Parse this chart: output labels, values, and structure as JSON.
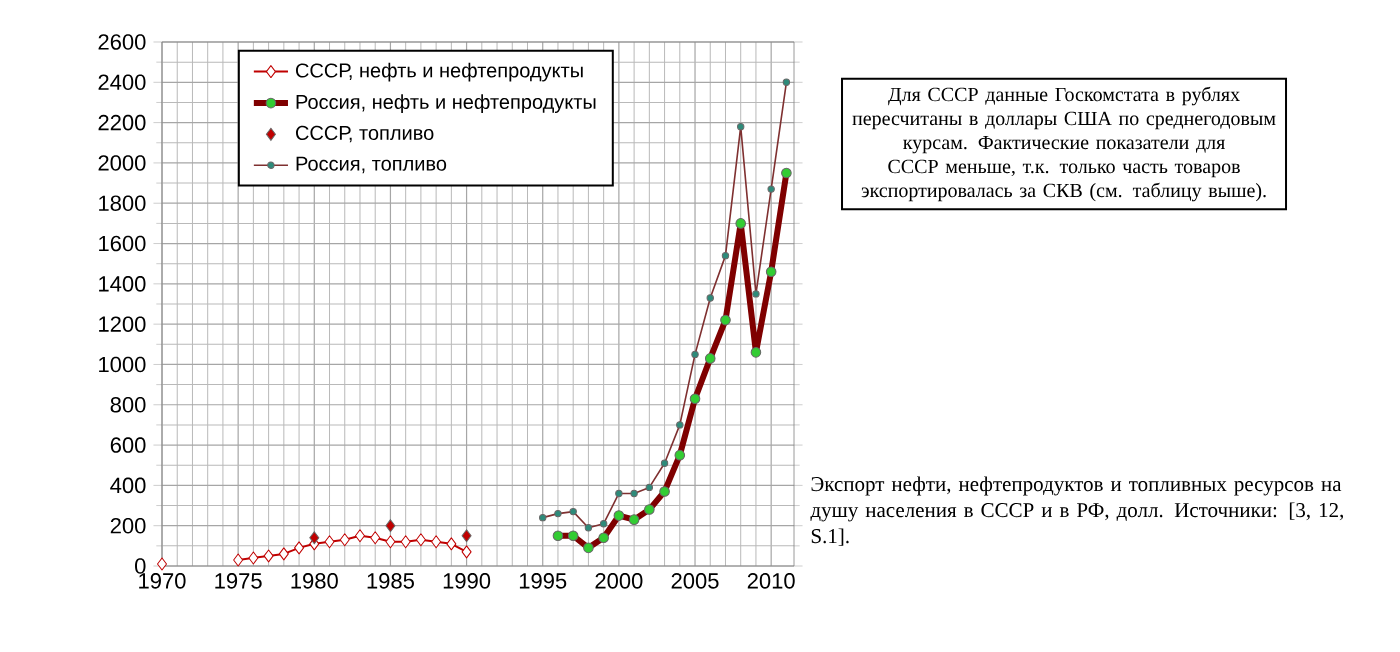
{
  "chart_data": {
    "type": "line",
    "xlim": [
      1970,
      2011.5
    ],
    "xticks": [
      1970,
      1975,
      1980,
      1985,
      1990,
      1995,
      2000,
      2005,
      2010
    ],
    "ylim": [
      0,
      2600
    ],
    "yticks": [
      0,
      200,
      400,
      600,
      800,
      1000,
      1200,
      1400,
      1600,
      1800,
      2000,
      2200,
      2400,
      2600
    ],
    "grid": true,
    "legend": "top left",
    "series": [
      {
        "name": "СССР, нефть и нефтепродукты",
        "color": "#c00000",
        "marker": "diamond",
        "x": [
          1970,
          1971,
          1972,
          1973,
          1974,
          1975,
          1976,
          1977,
          1978,
          1979,
          1980,
          1981,
          1982,
          1983,
          1984,
          1985,
          1986,
          1987,
          1988,
          1989,
          1990
        ],
        "values": [
          10,
          null,
          null,
          null,
          null,
          30,
          40,
          50,
          60,
          90,
          110,
          120,
          130,
          150,
          140,
          120,
          120,
          130,
          120,
          110,
          70
        ]
      },
      {
        "name": "Россия, нефть и нефтепродукты",
        "color": "#7f0000",
        "marker": "circle",
        "x": [
          1996,
          1997,
          1998,
          1999,
          2000,
          2001,
          2002,
          2003,
          2004,
          2005,
          2006,
          2007,
          2008,
          2009,
          2010,
          2011
        ],
        "values": [
          150,
          150,
          90,
          140,
          250,
          230,
          280,
          370,
          550,
          830,
          1030,
          1220,
          1700,
          1060,
          1460,
          1950
        ]
      },
      {
        "name": "СССР, топливо",
        "type": "scatter",
        "color": "#c00000",
        "marker": "diamond",
        "x": [
          1980,
          1985,
          1990
        ],
        "values": [
          140,
          200,
          150
        ]
      },
      {
        "name": "Россия, топливо",
        "color": "#7f3030",
        "marker": "circle",
        "x": [
          1995,
          1996,
          1997,
          1998,
          1999,
          2000,
          2001,
          2002,
          2003,
          2004,
          2005,
          2006,
          2007,
          2008,
          2009,
          2010,
          2011
        ],
        "values": [
          240,
          260,
          270,
          190,
          210,
          360,
          360,
          390,
          510,
          700,
          1050,
          1330,
          1540,
          2180,
          1350,
          1870,
          2400
        ]
      }
    ],
    "annotations": [
      "Для СССР данные Госкомстата в рублях пересчитаны в доллары США по среднегодовым курсам. Фактические показатели для СССР меньше, т.к. только часть товаров экспортировалась за СКВ (см. таблицу выше).",
      "Экспорт нефти, нефтепродуктов и топливных ресурсов на душу населения в СССР и в РФ, долл. Источники: [3, 12, S.1]."
    ]
  }
}
